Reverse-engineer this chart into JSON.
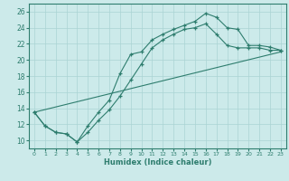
{
  "xlabel": "Humidex (Indice chaleur)",
  "ylabel": "",
  "bg_color": "#cceaea",
  "line_color": "#2e7d6e",
  "grid_color": "#aad4d4",
  "xlim": [
    -0.5,
    23.5
  ],
  "ylim": [
    9,
    27
  ],
  "yticks": [
    10,
    12,
    14,
    16,
    18,
    20,
    22,
    24,
    26
  ],
  "xticks": [
    0,
    1,
    2,
    3,
    4,
    5,
    6,
    7,
    8,
    9,
    10,
    11,
    12,
    13,
    14,
    15,
    16,
    17,
    18,
    19,
    20,
    21,
    22,
    23
  ],
  "line1_x": [
    0,
    1,
    2,
    3,
    4,
    5,
    6,
    7,
    8,
    9,
    10,
    11,
    12,
    13,
    14,
    15,
    16,
    17,
    18,
    19,
    20,
    21,
    22,
    23
  ],
  "line1_y": [
    13.5,
    11.8,
    11.0,
    10.8,
    9.8,
    11.8,
    13.5,
    15.0,
    18.3,
    20.7,
    21.0,
    22.5,
    23.2,
    23.8,
    24.3,
    24.8,
    25.8,
    25.3,
    24.0,
    23.8,
    21.8,
    21.8,
    21.6,
    21.2
  ],
  "line2_x": [
    0,
    1,
    2,
    3,
    4,
    5,
    6,
    7,
    8,
    9,
    10,
    11,
    12,
    13,
    14,
    15,
    16,
    17,
    18,
    19,
    20,
    21,
    22,
    23
  ],
  "line2_y": [
    13.5,
    11.8,
    11.0,
    10.8,
    9.8,
    11.0,
    12.5,
    13.8,
    15.5,
    17.5,
    19.5,
    21.5,
    22.5,
    23.2,
    23.8,
    24.0,
    24.5,
    23.2,
    21.8,
    21.5,
    21.5,
    21.5,
    21.2,
    21.2
  ],
  "line3_x": [
    0,
    23
  ],
  "line3_y": [
    13.5,
    21.0
  ]
}
